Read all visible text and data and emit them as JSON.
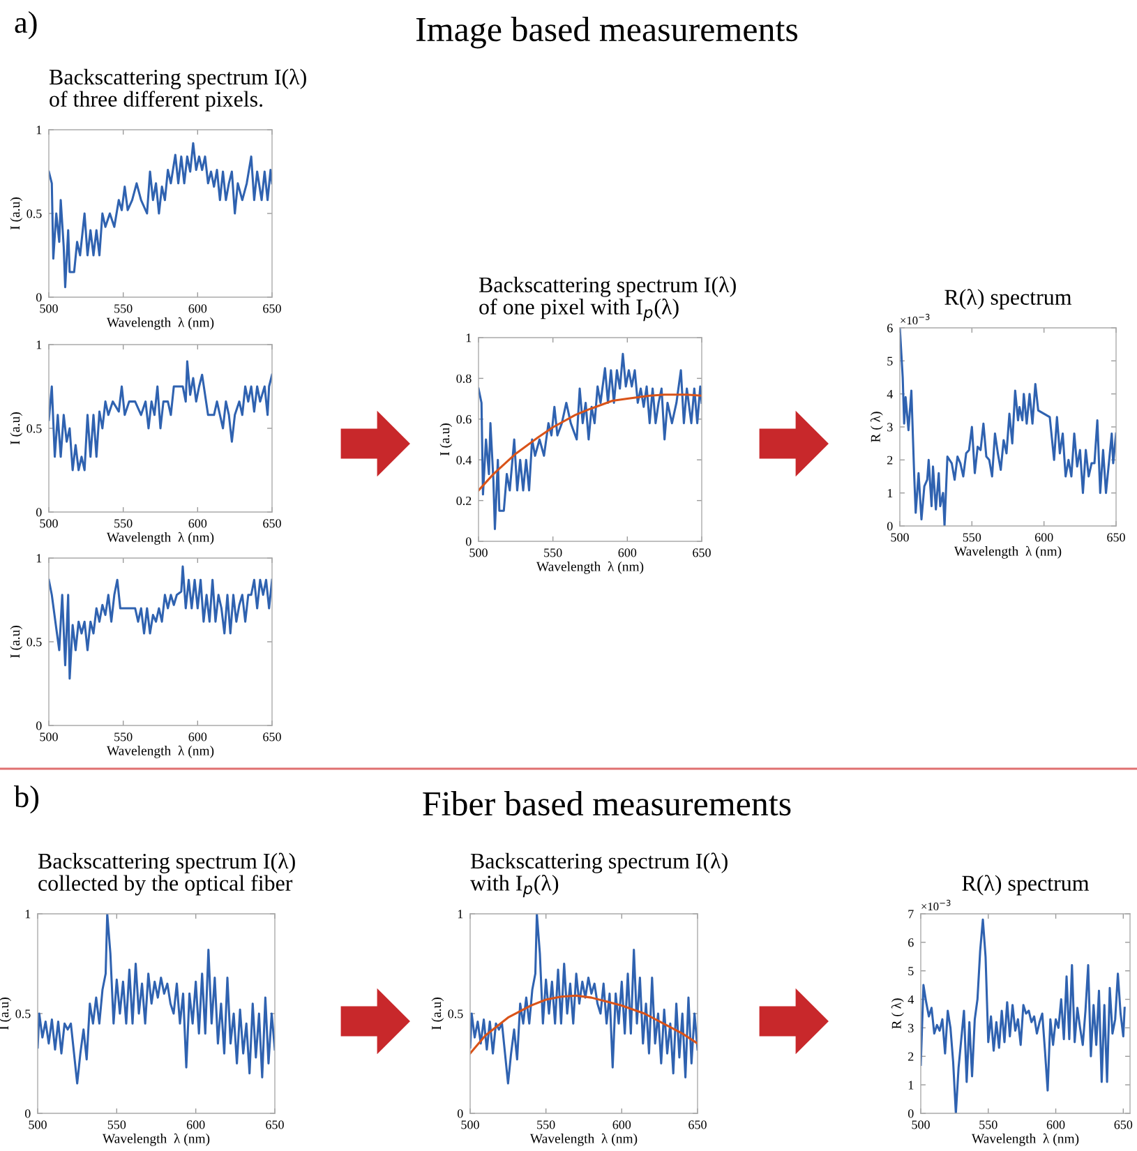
{
  "chart_data": [
    {
      "type": "line",
      "title": "Backscattering spectrum I(λ)\nof three different pixels.",
      "xlabel": "Wavelength  λ (nm)",
      "ylabel": "I (a.u)",
      "annotations": [
        "a)",
        "Image based measurements"
      ],
      "xlim": [
        500,
        650
      ],
      "ylim": [
        0,
        1
      ],
      "xticks": [
        500,
        550,
        600,
        650
      ],
      "yticks": [
        0,
        0.5,
        1
      ],
      "grid": false,
      "series": [
        {
          "color": "#2f62b0",
          "x": [
            500,
            502,
            503,
            505,
            507,
            508,
            510,
            511,
            513,
            514,
            517,
            519,
            521,
            524,
            526,
            528,
            530,
            532,
            534,
            536,
            538,
            541,
            544,
            547,
            549,
            551,
            553,
            556,
            559,
            562,
            566,
            568,
            570,
            572,
            574,
            576,
            578,
            580,
            582,
            585,
            587,
            589,
            591,
            593,
            595,
            597,
            599,
            601,
            603,
            605,
            607,
            609,
            611,
            613,
            615,
            617,
            619,
            621,
            623,
            625,
            627,
            630,
            633,
            636,
            638,
            640,
            643,
            645,
            647,
            649,
            650
          ],
          "values": [
            0.75,
            0.68,
            0.23,
            0.5,
            0.33,
            0.58,
            0.3,
            0.06,
            0.4,
            0.15,
            0.15,
            0.33,
            0.25,
            0.5,
            0.25,
            0.4,
            0.25,
            0.4,
            0.25,
            0.5,
            0.42,
            0.5,
            0.42,
            0.58,
            0.52,
            0.66,
            0.52,
            0.58,
            0.68,
            0.58,
            0.5,
            0.75,
            0.58,
            0.68,
            0.5,
            0.66,
            0.58,
            0.76,
            0.68,
            0.85,
            0.68,
            0.84,
            0.68,
            0.84,
            0.75,
            0.92,
            0.76,
            0.84,
            0.76,
            0.84,
            0.68,
            0.75,
            0.66,
            0.76,
            0.58,
            0.75,
            0.58,
            0.68,
            0.75,
            0.5,
            0.68,
            0.58,
            0.68,
            0.84,
            0.58,
            0.75,
            0.58,
            0.75,
            0.58,
            0.76,
            0.68
          ]
        }
      ]
    },
    {
      "type": "line",
      "xlabel": "Wavelength  λ (nm)",
      "ylabel": "I (a.u)",
      "xlim": [
        500,
        650
      ],
      "ylim": [
        0,
        1
      ],
      "xticks": [
        500,
        550,
        600,
        650
      ],
      "yticks": [
        0,
        0.5,
        1
      ],
      "grid": false,
      "series": [
        {
          "color": "#2f62b0",
          "x": [
            500,
            502,
            504,
            506,
            508,
            510,
            512,
            514,
            516,
            518,
            520,
            522,
            524,
            526,
            528,
            530,
            532,
            534,
            536,
            538,
            540,
            543,
            547,
            549,
            551,
            554,
            558,
            562,
            565,
            567,
            569,
            571,
            573,
            575,
            577,
            580,
            582,
            584,
            587,
            590,
            592,
            593,
            595,
            597,
            599,
            601,
            603,
            605,
            607,
            611,
            613,
            615,
            617,
            619,
            621,
            623,
            625,
            628,
            630,
            632,
            634,
            636,
            638,
            640,
            642,
            645,
            647,
            648,
            650
          ],
          "values": [
            0.55,
            0.75,
            0.33,
            0.58,
            0.33,
            0.58,
            0.42,
            0.5,
            0.25,
            0.4,
            0.25,
            0.33,
            0.25,
            0.58,
            0.33,
            0.58,
            0.33,
            0.6,
            0.5,
            0.66,
            0.58,
            0.66,
            0.6,
            0.75,
            0.58,
            0.66,
            0.66,
            0.58,
            0.66,
            0.5,
            0.66,
            0.58,
            0.75,
            0.5,
            0.66,
            0.66,
            0.58,
            0.75,
            0.75,
            0.75,
            0.66,
            0.9,
            0.7,
            0.8,
            0.66,
            0.75,
            0.82,
            0.7,
            0.58,
            0.58,
            0.66,
            0.58,
            0.5,
            0.66,
            0.58,
            0.42,
            0.58,
            0.66,
            0.58,
            0.75,
            0.66,
            0.75,
            0.6,
            0.75,
            0.66,
            0.75,
            0.58,
            0.75,
            0.82
          ]
        }
      ]
    },
    {
      "type": "line",
      "xlabel": "Wavelength  λ (nm)",
      "ylabel": "I (a.u)",
      "xlim": [
        500,
        650
      ],
      "ylim": [
        0,
        1
      ],
      "xticks": [
        500,
        550,
        600,
        650
      ],
      "yticks": [
        0,
        0.5,
        1
      ],
      "grid": false,
      "series": [
        {
          "color": "#2f62b0",
          "x": [
            500,
            502,
            505,
            507,
            509,
            511,
            513,
            514,
            516,
            518,
            520,
            522,
            524,
            526,
            528,
            530,
            532,
            534,
            536,
            538,
            540,
            542,
            544,
            546,
            548,
            555,
            558,
            560,
            562,
            564,
            566,
            568,
            570,
            572,
            574,
            576,
            578,
            580,
            582,
            584,
            586,
            589,
            590,
            592,
            594,
            596,
            598,
            600,
            602,
            604,
            606,
            608,
            610,
            612,
            614,
            616,
            618,
            620,
            622,
            624,
            626,
            628,
            630,
            632,
            634,
            636,
            638,
            640,
            642,
            644,
            646,
            648,
            650
          ],
          "values": [
            0.87,
            0.78,
            0.58,
            0.45,
            0.78,
            0.36,
            0.78,
            0.28,
            0.6,
            0.45,
            0.62,
            0.55,
            0.62,
            0.45,
            0.62,
            0.55,
            0.7,
            0.62,
            0.72,
            0.66,
            0.78,
            0.62,
            0.78,
            0.87,
            0.7,
            0.7,
            0.7,
            0.62,
            0.7,
            0.55,
            0.7,
            0.55,
            0.66,
            0.62,
            0.7,
            0.62,
            0.78,
            0.7,
            0.78,
            0.72,
            0.78,
            0.8,
            0.95,
            0.7,
            0.87,
            0.7,
            0.87,
            0.7,
            0.87,
            0.62,
            0.78,
            0.62,
            0.87,
            0.62,
            0.78,
            0.7,
            0.55,
            0.78,
            0.55,
            0.78,
            0.62,
            0.72,
            0.78,
            0.62,
            0.78,
            0.78,
            0.87,
            0.7,
            0.87,
            0.78,
            0.87,
            0.7,
            0.87
          ]
        }
      ]
    },
    {
      "type": "line",
      "title": "Backscattering spectrum I(λ)\nof one pixel with I$_{p}$(λ)",
      "xlabel": "Wavelength  λ (nm)",
      "ylabel": "I (a.u)",
      "xlim": [
        500,
        650
      ],
      "ylim": [
        0,
        1
      ],
      "xticks": [
        500,
        550,
        600,
        650
      ],
      "yticks": [
        0,
        0.2,
        0.4,
        0.6,
        0.8,
        1
      ],
      "grid": false,
      "series": [
        {
          "color": "#2f62b0",
          "x": [
            500,
            502,
            503,
            505,
            507,
            508,
            510,
            511,
            513,
            514,
            517,
            519,
            521,
            524,
            526,
            528,
            530,
            532,
            534,
            536,
            538,
            541,
            544,
            547,
            549,
            551,
            553,
            556,
            559,
            562,
            566,
            568,
            570,
            572,
            574,
            576,
            578,
            580,
            582,
            585,
            587,
            589,
            591,
            593,
            595,
            597,
            599,
            601,
            603,
            605,
            607,
            609,
            611,
            613,
            615,
            617,
            619,
            621,
            623,
            625,
            627,
            630,
            633,
            636,
            638,
            640,
            643,
            645,
            647,
            649,
            650
          ],
          "values": [
            0.75,
            0.68,
            0.23,
            0.5,
            0.33,
            0.58,
            0.3,
            0.06,
            0.4,
            0.15,
            0.15,
            0.33,
            0.25,
            0.5,
            0.25,
            0.4,
            0.25,
            0.4,
            0.25,
            0.5,
            0.42,
            0.5,
            0.42,
            0.58,
            0.52,
            0.66,
            0.52,
            0.58,
            0.68,
            0.58,
            0.5,
            0.75,
            0.58,
            0.68,
            0.5,
            0.66,
            0.58,
            0.76,
            0.68,
            0.85,
            0.68,
            0.84,
            0.68,
            0.84,
            0.75,
            0.92,
            0.76,
            0.84,
            0.76,
            0.84,
            0.68,
            0.75,
            0.66,
            0.76,
            0.58,
            0.75,
            0.58,
            0.68,
            0.75,
            0.5,
            0.68,
            0.58,
            0.68,
            0.84,
            0.58,
            0.75,
            0.58,
            0.75,
            0.58,
            0.76,
            0.68
          ]
        },
        {
          "color": "#d95319",
          "x": [
            500,
            510,
            525,
            540,
            550,
            565,
            575,
            590,
            600,
            615,
            625,
            640,
            650
          ],
          "values": [
            0.25,
            0.33,
            0.43,
            0.51,
            0.56,
            0.62,
            0.65,
            0.69,
            0.7,
            0.715,
            0.72,
            0.72,
            0.715
          ]
        }
      ]
    },
    {
      "type": "line",
      "title": "R(λ) spectrum",
      "xlabel": "Wavelength  λ (nm)",
      "ylabel": "R ( λ)",
      "annotations": [
        "×10$^{−3}$"
      ],
      "xlim": [
        500,
        650
      ],
      "ylim": [
        0,
        6
      ],
      "xticks": [
        500,
        550,
        600,
        650
      ],
      "yticks": [
        0,
        1,
        2,
        3,
        4,
        5,
        6
      ],
      "grid": false,
      "series": [
        {
          "color": "#2f62b0",
          "x": [
            500,
            502,
            503,
            504,
            506,
            508,
            510,
            511,
            513,
            515,
            517,
            519,
            520,
            522,
            523,
            525,
            527,
            528,
            530,
            531,
            533,
            536,
            538,
            540,
            542,
            544,
            546,
            548,
            550,
            552,
            554,
            556,
            558,
            560,
            562,
            564,
            566,
            568,
            570,
            572,
            574,
            576,
            578,
            580,
            582,
            583,
            585,
            586,
            588,
            590,
            592,
            594,
            596,
            604,
            607,
            609,
            611,
            613,
            615,
            617,
            619,
            621,
            623,
            625,
            627,
            629,
            631,
            633,
            635,
            637,
            639,
            641,
            643,
            645,
            647,
            648,
            650
          ],
          "values": [
            6.0,
            4.5,
            3.1,
            3.9,
            2.9,
            4.1,
            1.5,
            0.4,
            1.6,
            0.2,
            1.2,
            1.4,
            2.0,
            0.6,
            1.8,
            0.5,
            1.6,
            0.6,
            1.0,
            0,
            2.1,
            1.9,
            1.4,
            2.1,
            1.9,
            1.5,
            2.2,
            2.3,
            3.0,
            1.6,
            2.4,
            2.3,
            3.1,
            2.1,
            2.0,
            1.5,
            2.8,
            2.2,
            1.7,
            2.6,
            2.2,
            3.4,
            2.5,
            4.1,
            3.2,
            3.6,
            3.2,
            4.0,
            3.1,
            4.0,
            3.1,
            4.3,
            3.5,
            3.3,
            2.0,
            3.3,
            2.2,
            2.8,
            1.5,
            2.0,
            1.5,
            2.8,
            1.8,
            2.3,
            1.0,
            2.3,
            1.5,
            1.9,
            1.9,
            3.2,
            1.0,
            2.3,
            1.0,
            1.9,
            2.8,
            1.9,
            2.8
          ]
        }
      ]
    },
    {
      "type": "line",
      "title": "Backscattering spectrum I(λ)\ncollected by the optical fiber",
      "xlabel": "Wavelength  λ (nm)",
      "ylabel": "I (a.u)",
      "annotations": [
        "b)",
        "Fiber based measurements"
      ],
      "xlim": [
        500,
        650
      ],
      "ylim": [
        0,
        1
      ],
      "xticks": [
        500,
        550,
        600,
        650
      ],
      "yticks": [
        0,
        0.5,
        1
      ],
      "grid": false,
      "series": [
        {
          "color": "#2f62b0",
          "x": [
            500,
            501,
            503,
            505,
            507,
            509,
            511,
            513,
            515,
            517,
            519,
            521,
            523,
            525,
            527,
            529,
            531,
            533,
            535,
            537,
            539,
            541,
            543,
            544,
            546,
            548,
            550,
            552,
            554,
            556,
            558,
            560,
            562,
            564,
            566,
            568,
            570,
            572,
            574,
            576,
            578,
            580,
            582,
            584,
            586,
            588,
            590,
            592,
            594,
            596,
            598,
            600,
            602,
            604,
            606,
            608,
            610,
            612,
            614,
            616,
            618,
            620,
            622,
            624,
            626,
            628,
            630,
            632,
            634,
            636,
            638,
            640,
            642,
            644,
            646,
            648,
            650
          ],
          "values": [
            0.33,
            0.5,
            0.38,
            0.46,
            0.35,
            0.47,
            0.32,
            0.46,
            0.3,
            0.45,
            0.42,
            0.45,
            0.3,
            0.15,
            0.3,
            0.42,
            0.27,
            0.55,
            0.45,
            0.58,
            0.45,
            0.62,
            0.7,
            1.0,
            0.8,
            0.45,
            0.67,
            0.5,
            0.66,
            0.45,
            0.72,
            0.45,
            0.75,
            0.5,
            0.65,
            0.45,
            0.7,
            0.55,
            0.66,
            0.58,
            0.68,
            0.6,
            0.65,
            0.55,
            0.5,
            0.65,
            0.45,
            0.6,
            0.23,
            0.6,
            0.45,
            0.66,
            0.4,
            0.7,
            0.4,
            0.82,
            0.45,
            0.68,
            0.35,
            0.55,
            0.3,
            0.68,
            0.35,
            0.5,
            0.25,
            0.52,
            0.3,
            0.45,
            0.2,
            0.55,
            0.28,
            0.5,
            0.18,
            0.58,
            0.25,
            0.5,
            0.32
          ]
        }
      ]
    },
    {
      "type": "line",
      "title": "Backscattering spectrum I(λ)\nwith I$_{p}$(λ)",
      "xlabel": "Wavelength  λ (nm)",
      "ylabel": "I (a.u)",
      "xlim": [
        500,
        650
      ],
      "ylim": [
        0,
        1
      ],
      "xticks": [
        500,
        550,
        600,
        650
      ],
      "yticks": [
        0,
        0.5,
        1
      ],
      "grid": false,
      "series": [
        {
          "color": "#2f62b0",
          "x": [
            500,
            501,
            503,
            505,
            507,
            509,
            511,
            513,
            515,
            517,
            519,
            521,
            523,
            525,
            527,
            529,
            531,
            533,
            535,
            537,
            539,
            541,
            543,
            544,
            546,
            548,
            550,
            552,
            554,
            556,
            558,
            560,
            562,
            564,
            566,
            568,
            570,
            572,
            574,
            576,
            578,
            580,
            582,
            584,
            586,
            588,
            590,
            592,
            594,
            596,
            598,
            600,
            602,
            604,
            606,
            608,
            610,
            612,
            614,
            616,
            618,
            620,
            622,
            624,
            626,
            628,
            630,
            632,
            634,
            636,
            638,
            640,
            642,
            644,
            646,
            648,
            650
          ],
          "values": [
            0.33,
            0.5,
            0.38,
            0.46,
            0.35,
            0.47,
            0.32,
            0.46,
            0.3,
            0.45,
            0.42,
            0.45,
            0.3,
            0.15,
            0.3,
            0.42,
            0.27,
            0.55,
            0.45,
            0.58,
            0.45,
            0.62,
            0.7,
            1.0,
            0.8,
            0.45,
            0.67,
            0.5,
            0.66,
            0.45,
            0.72,
            0.45,
            0.75,
            0.5,
            0.65,
            0.45,
            0.7,
            0.55,
            0.66,
            0.58,
            0.68,
            0.6,
            0.65,
            0.55,
            0.5,
            0.65,
            0.45,
            0.6,
            0.23,
            0.6,
            0.45,
            0.66,
            0.4,
            0.7,
            0.4,
            0.82,
            0.45,
            0.68,
            0.35,
            0.55,
            0.3,
            0.68,
            0.35,
            0.5,
            0.25,
            0.52,
            0.3,
            0.45,
            0.2,
            0.55,
            0.28,
            0.5,
            0.18,
            0.58,
            0.25,
            0.5,
            0.32
          ]
        },
        {
          "color": "#d95319",
          "x": [
            500,
            510,
            525,
            540,
            550,
            560,
            570,
            580,
            590,
            600,
            615,
            630,
            640,
            650
          ],
          "values": [
            0.3,
            0.39,
            0.48,
            0.54,
            0.57,
            0.585,
            0.59,
            0.58,
            0.56,
            0.54,
            0.5,
            0.44,
            0.4,
            0.35
          ]
        }
      ]
    },
    {
      "type": "line",
      "title": "R(λ) spectrum",
      "xlabel": "Wavelength  λ (nm)",
      "ylabel": "R ( λ)",
      "annotations": [
        "×10$^{−3}$"
      ],
      "xlim": [
        500,
        655
      ],
      "ylim": [
        0,
        7
      ],
      "xticks": [
        500,
        550,
        600,
        650
      ],
      "yticks": [
        0,
        1,
        2,
        3,
        4,
        5,
        6,
        7
      ],
      "grid": false,
      "series": [
        {
          "color": "#2f62b0",
          "x": [
            500,
            502,
            504,
            506,
            508,
            510,
            512,
            514,
            516,
            518,
            520,
            522,
            524,
            526,
            528,
            530,
            532,
            534,
            536,
            538,
            540,
            542,
            544,
            546,
            548,
            550,
            552,
            554,
            556,
            558,
            560,
            562,
            564,
            566,
            568,
            570,
            572,
            574,
            576,
            578,
            580,
            582,
            584,
            586,
            588,
            590,
            592,
            594,
            596,
            598,
            600,
            602,
            604,
            606,
            608,
            610,
            612,
            614,
            616,
            618,
            620,
            622,
            624,
            626,
            628,
            630,
            632,
            634,
            636,
            638,
            640,
            642,
            644,
            646,
            648,
            650,
            651
          ],
          "values": [
            1.7,
            4.5,
            3.9,
            3.4,
            3.7,
            2.8,
            3.1,
            2.9,
            3.3,
            2.1,
            3.6,
            3.0,
            1.8,
            0,
            1.6,
            2.6,
            3.6,
            1.1,
            3.2,
            1.3,
            3.3,
            4.0,
            5.7,
            6.8,
            5.5,
            2.5,
            3.4,
            2.2,
            3.2,
            2.3,
            3.6,
            2.5,
            3.9,
            2.7,
            3.8,
            2.9,
            3.3,
            2.4,
            3.8,
            3.5,
            3.6,
            3.2,
            3.4,
            2.8,
            3.2,
            3.5,
            2.2,
            0.8,
            3.3,
            2.4,
            3.3,
            3.0,
            4.0,
            2.6,
            4.8,
            2.6,
            5.2,
            2.5,
            3.7,
            3.0,
            2.4,
            3.6,
            5.2,
            2.0,
            3.8,
            2.4,
            4.3,
            1.1,
            3.8,
            1.1,
            4.4,
            2.8,
            3.3,
            4.9,
            3.5,
            2.7,
            3.7
          ]
        }
      ]
    }
  ]
}
